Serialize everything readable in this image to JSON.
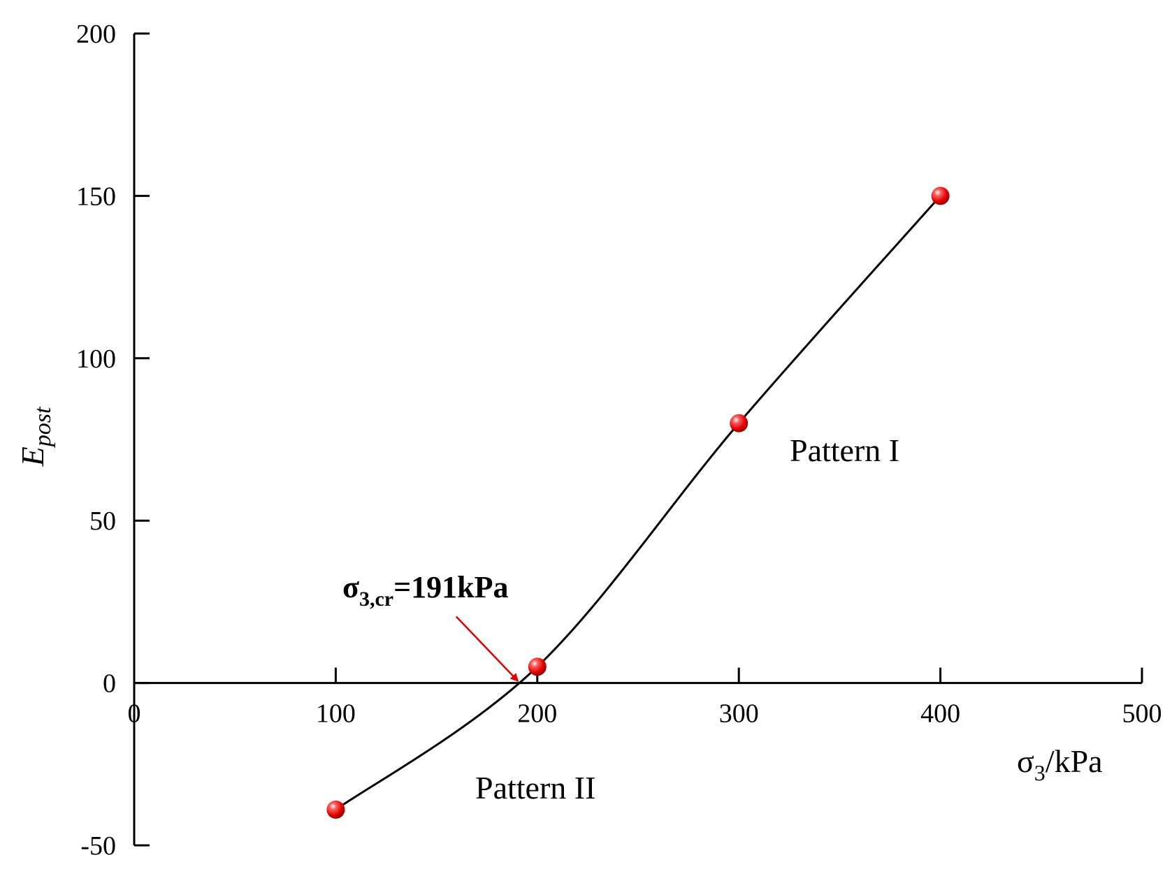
{
  "chart_data": {
    "type": "line",
    "title": "",
    "xlabel": {
      "main": "σ",
      "sub": "3",
      "unit": "/kPa"
    },
    "ylabel": {
      "main": "E",
      "sub": "post"
    },
    "xlim": [
      0,
      500
    ],
    "ylim": [
      -50,
      200
    ],
    "x_ticks": [
      0,
      100,
      200,
      300,
      400,
      500
    ],
    "y_ticks": [
      -50,
      0,
      50,
      100,
      150,
      200
    ],
    "grid": false,
    "legend": "none",
    "series": [
      {
        "x": [
          100,
          200,
          300,
          400
        ],
        "y": [
          -39,
          5,
          80,
          150
        ],
        "marker_color": "#e00000",
        "line_color": "#000000"
      }
    ],
    "critical": {
      "x": 191,
      "y": 0,
      "label_main": "σ",
      "label_sub": "3,cr",
      "label_rest": "=191kPa",
      "arrow_color": "#e00000"
    },
    "annotations": [
      {
        "text": "Pattern I",
        "region": "above-right"
      },
      {
        "text": "Pattern II",
        "region": "below"
      }
    ]
  }
}
